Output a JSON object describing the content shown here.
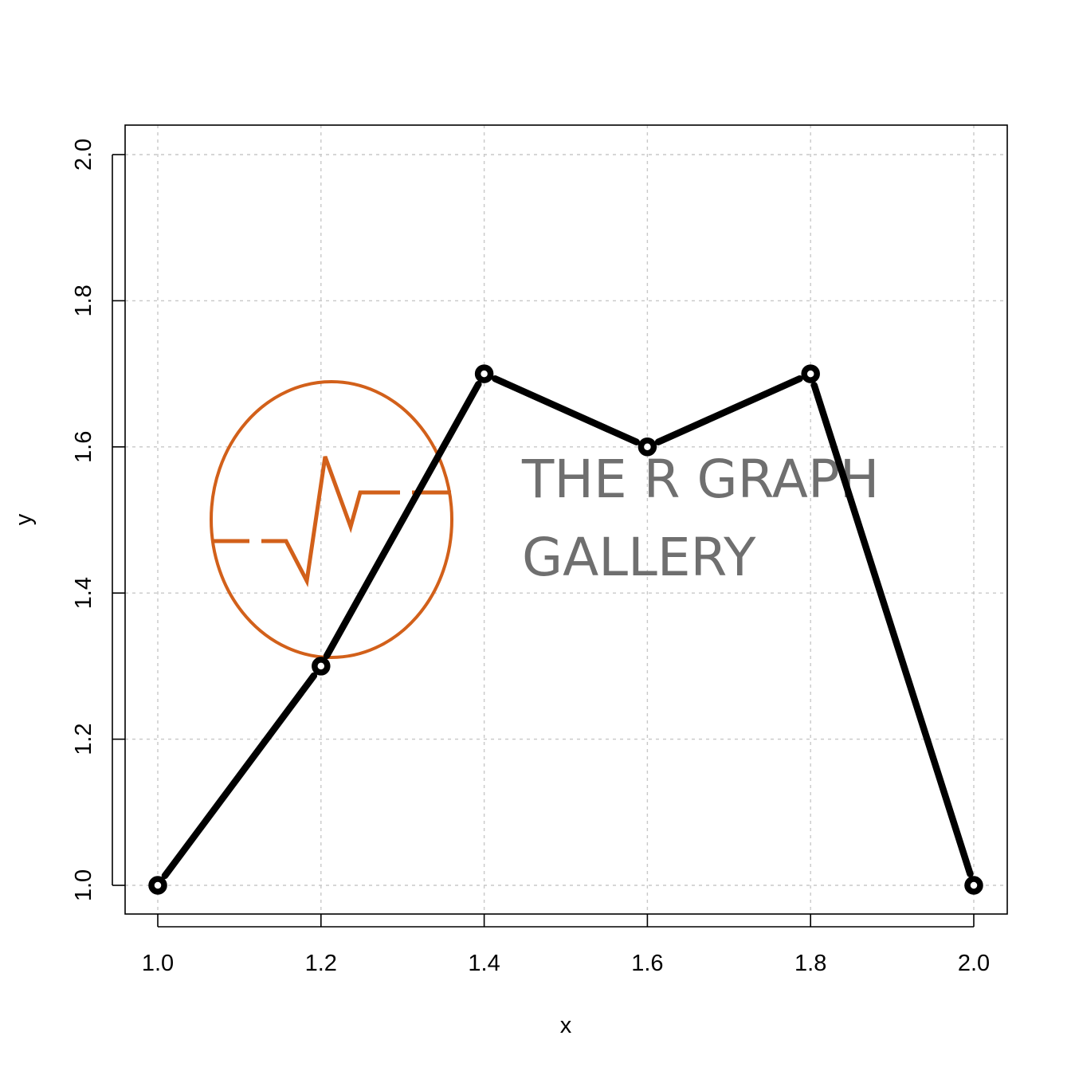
{
  "chart_data": {
    "type": "line",
    "title": "",
    "xlabel": "x",
    "ylabel": "y",
    "x": [
      1.0,
      1.2,
      1.4,
      1.6,
      1.8,
      2.0
    ],
    "series": [
      {
        "values": [
          1.0,
          1.3,
          1.7,
          1.6,
          1.7,
          1.0
        ]
      }
    ],
    "xlim": [
      1.0,
      2.0
    ],
    "ylim": [
      1.0,
      2.0
    ],
    "x_ticks": [
      "1.0",
      "1.2",
      "1.4",
      "1.6",
      "1.8",
      "2.0"
    ],
    "y_ticks": [
      "1.0",
      "1.2",
      "1.4",
      "1.6",
      "1.8",
      "2.0"
    ],
    "grid": true,
    "line_type": "o",
    "colors": {
      "line": "#000000",
      "grid": "#c8c8c8",
      "watermark_logo": "#d2601a",
      "watermark_text": "#6f6f6f"
    }
  },
  "watermark": {
    "line1": "THE R GRAPH",
    "line2": "GALLERY"
  }
}
